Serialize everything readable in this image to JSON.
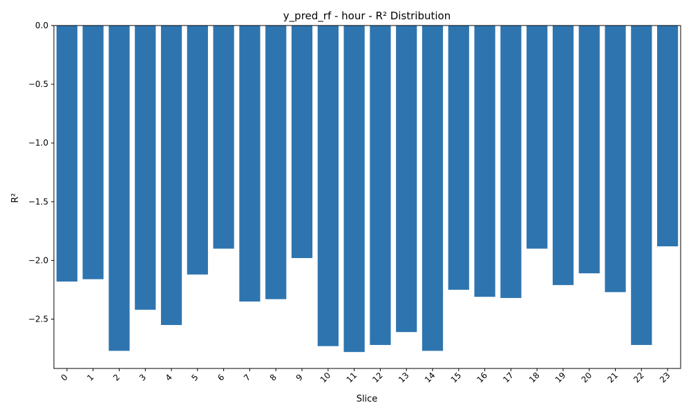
{
  "chart_data": {
    "type": "bar",
    "title": "y_pred_rf - hour - R² Distribution",
    "xlabel": "Slice",
    "ylabel": "R²",
    "categories": [
      "0",
      "1",
      "2",
      "3",
      "4",
      "5",
      "6",
      "7",
      "8",
      "9",
      "10",
      "11",
      "12",
      "13",
      "14",
      "15",
      "16",
      "17",
      "18",
      "19",
      "20",
      "21",
      "22",
      "23"
    ],
    "values": [
      -2.18,
      -2.16,
      -2.77,
      -2.42,
      -2.55,
      -2.12,
      -1.9,
      -2.35,
      -2.33,
      -1.98,
      -2.73,
      -2.78,
      -2.72,
      -2.61,
      -2.77,
      -2.25,
      -2.31,
      -2.32,
      -1.9,
      -2.21,
      -2.11,
      -2.27,
      -2.72,
      -1.88
    ],
    "ylim": [
      -2.92,
      0.0
    ],
    "yticks": [
      0.0,
      -0.5,
      -1.0,
      -1.5,
      -2.0,
      -2.5
    ],
    "ytick_labels": [
      "0.0",
      "−0.5",
      "−1.0",
      "−1.5",
      "−2.0",
      "−2.5"
    ],
    "bar_color": "#2e75b0",
    "grid": false,
    "legend": "none"
  }
}
